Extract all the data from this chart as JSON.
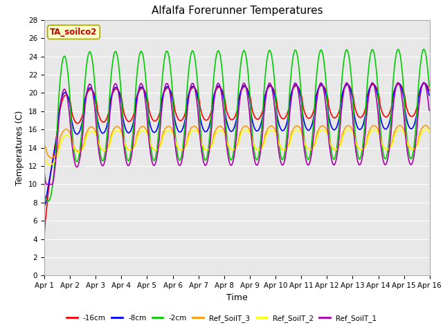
{
  "title": "Alfalfa Forerunner Temperatures",
  "xlabel": "Time",
  "ylabel": "Temperatures (C)",
  "ylim": [
    0,
    28
  ],
  "yticks": [
    0,
    2,
    4,
    6,
    8,
    10,
    12,
    14,
    16,
    18,
    20,
    22,
    24,
    26,
    28
  ],
  "x_labels": [
    "Apr 1",
    "Apr 2",
    "Apr 3",
    "Apr 4",
    "Apr 5",
    "Apr 6",
    "Apr 7",
    "Apr 8",
    "Apr 9",
    "Apr 10",
    "Apr 11",
    "Apr 12",
    "Apr 13",
    "Apr 14",
    "Apr 15",
    "Apr 16"
  ],
  "annotation_text": "TA_soilco2",
  "annotation_color": "#cc0000",
  "annotation_bg": "#ffffcc",
  "annotation_edge": "#999900",
  "fig_bg": "#ffffff",
  "plot_bg": "#e8e8e8",
  "grid_color": "#ffffff",
  "series": {
    "neg16cm": {
      "color": "#ff0000",
      "label": "-16cm",
      "linewidth": 1.2
    },
    "neg8cm": {
      "color": "#0000ff",
      "label": "-8cm",
      "linewidth": 1.2
    },
    "neg2cm": {
      "color": "#00cc00",
      "label": "-2cm",
      "linewidth": 1.2
    },
    "RefSoilT3": {
      "color": "#ff9900",
      "label": "Ref_SoilT_3",
      "linewidth": 1.2
    },
    "RefSoilT2": {
      "color": "#ffff00",
      "label": "Ref_SoilT_2",
      "linewidth": 1.2
    },
    "RefSoilT1": {
      "color": "#aa00aa",
      "label": "Ref_SoilT_1",
      "linewidth": 1.2
    }
  },
  "n_days": 15,
  "pts_per_day": 48
}
